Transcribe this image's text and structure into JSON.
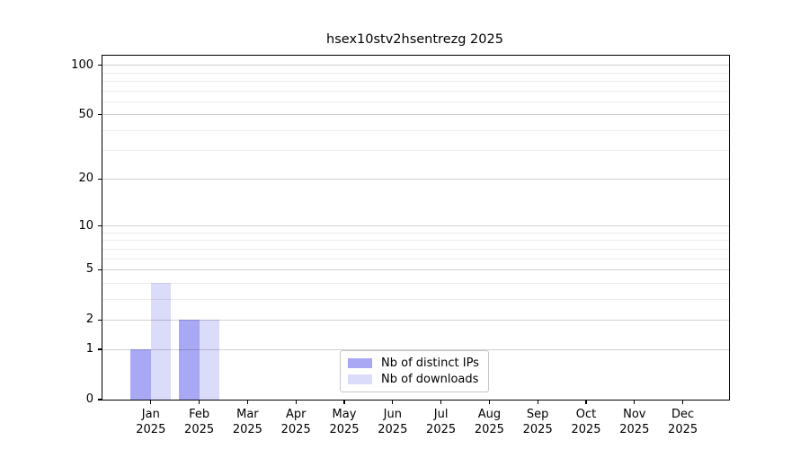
{
  "chart_data": {
    "type": "bar",
    "title": "hsex10stv2hsentrezg 2025",
    "categories": [
      "Jan 2025",
      "Feb 2025",
      "Mar 2025",
      "Apr 2025",
      "May 2025",
      "Jun 2025",
      "Jul 2025",
      "Aug 2025",
      "Sep 2025",
      "Oct 2025",
      "Nov 2025",
      "Dec 2025"
    ],
    "series": [
      {
        "name": "Nb of distinct IPs",
        "color": "#a8a8f5",
        "values": [
          1,
          2,
          0,
          0,
          0,
          0,
          0,
          0,
          0,
          0,
          0,
          0
        ]
      },
      {
        "name": "Nb of downloads",
        "color": "#dbdbfa",
        "values": [
          4,
          2,
          0,
          0,
          0,
          0,
          0,
          0,
          0,
          0,
          0,
          0
        ]
      }
    ],
    "xlabel": "",
    "ylabel": "",
    "y_axis": {
      "scale": "log1p",
      "major_ticks": [
        0,
        1,
        2,
        5,
        10,
        20,
        50,
        100
      ],
      "minor_gridlines": [
        3,
        4,
        6,
        7,
        8,
        9,
        30,
        40,
        60,
        70,
        80,
        90
      ],
      "ylim": [
        0,
        112
      ]
    },
    "grid": "horizontal",
    "legend": {
      "position": "bottom-center",
      "entries": [
        "Nb of distinct IPs",
        "Nb of downloads"
      ]
    }
  }
}
